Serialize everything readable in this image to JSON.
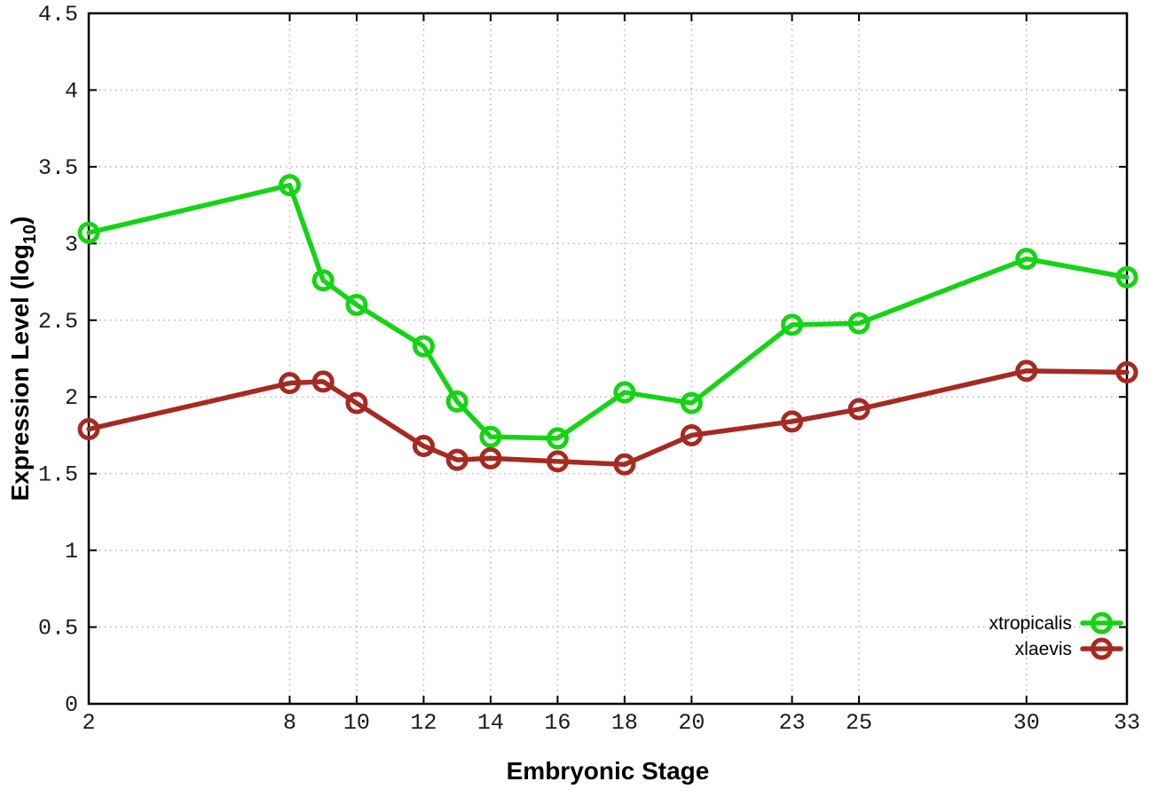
{
  "chart_data": {
    "type": "line",
    "title": "",
    "xlabel": "Embryonic Stage",
    "ylabel_main": "Expression Level (log",
    "ylabel_sub": "10",
    "ylabel_close": ")",
    "x": [
      2,
      8,
      9,
      10,
      12,
      13,
      14,
      16,
      18,
      20,
      23,
      25,
      30,
      33
    ],
    "series": [
      {
        "name": "xtropicalis",
        "color": "#14d414",
        "values": [
          3.07,
          3.38,
          2.76,
          2.6,
          2.33,
          1.97,
          1.74,
          1.73,
          2.03,
          1.96,
          2.47,
          2.48,
          2.9,
          2.78
        ]
      },
      {
        "name": "xlaevis",
        "color": "#a62a22",
        "values": [
          1.79,
          2.09,
          2.1,
          1.96,
          1.68,
          1.59,
          1.6,
          1.58,
          1.56,
          1.75,
          1.84,
          1.92,
          2.17,
          2.16
        ]
      }
    ],
    "xticks": [
      2,
      8,
      10,
      12,
      14,
      16,
      18,
      20,
      23,
      25,
      30,
      33
    ],
    "yticks": [
      0,
      0.5,
      1,
      1.5,
      2,
      2.5,
      3,
      3.5,
      4,
      4.5
    ],
    "xlim": [
      2,
      33
    ],
    "ylim": [
      0,
      4.5
    ],
    "grid": true,
    "legend_position": "bottom-right",
    "marker": "open-circle"
  },
  "styles": {
    "background": "#ffffff",
    "grid_color": "#b5b5b5",
    "axis_color": "#000000",
    "text_color": "#1a1a1a"
  }
}
